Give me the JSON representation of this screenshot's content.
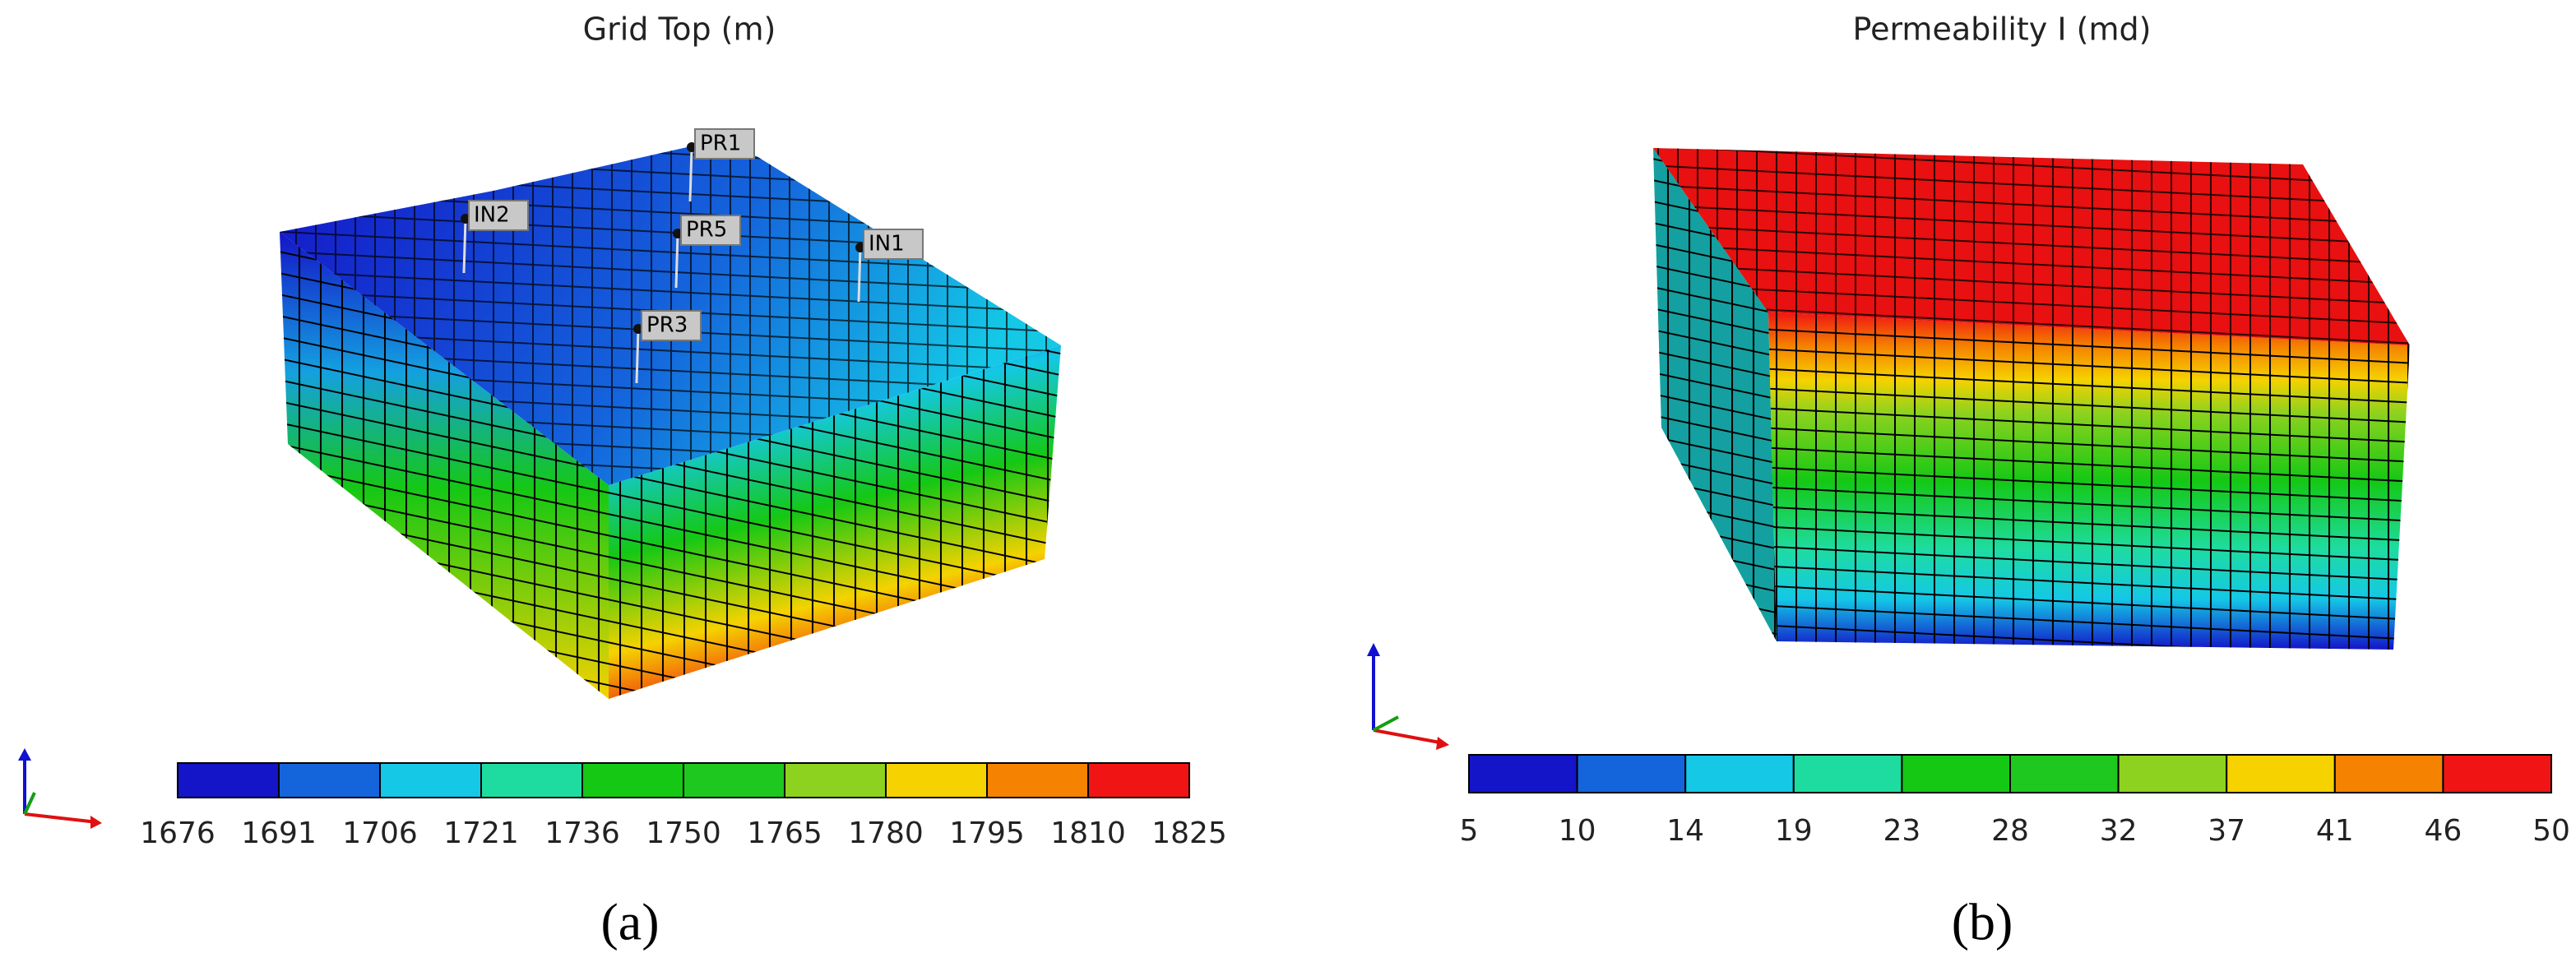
{
  "panels": [
    {
      "title": "Grid Top (m)",
      "label": "(a)",
      "wells": [
        "PR1",
        "IN2",
        "PR5",
        "IN1",
        "PR3"
      ],
      "colorbar": {
        "ticks": [
          1676,
          1691,
          1706,
          1721,
          1736,
          1750,
          1765,
          1780,
          1795,
          1810,
          1825
        ],
        "colors": [
          "#1414c8",
          "#1464dc",
          "#14c8e6",
          "#1edca0",
          "#14c814",
          "#1ec81e",
          "#8cd21e",
          "#f5d200",
          "#f58200",
          "#f01414"
        ]
      }
    },
    {
      "title": "Permeability I (md)",
      "label": "(b)",
      "wells": [],
      "colorbar": {
        "ticks": [
          5,
          10,
          14,
          19,
          23,
          28,
          32,
          37,
          41,
          46,
          50
        ],
        "colors": [
          "#1414c8",
          "#1464dc",
          "#14c8e6",
          "#1edca0",
          "#14c814",
          "#1ec81e",
          "#8cd21e",
          "#f5d200",
          "#f58200",
          "#f01414"
        ]
      }
    }
  ]
}
